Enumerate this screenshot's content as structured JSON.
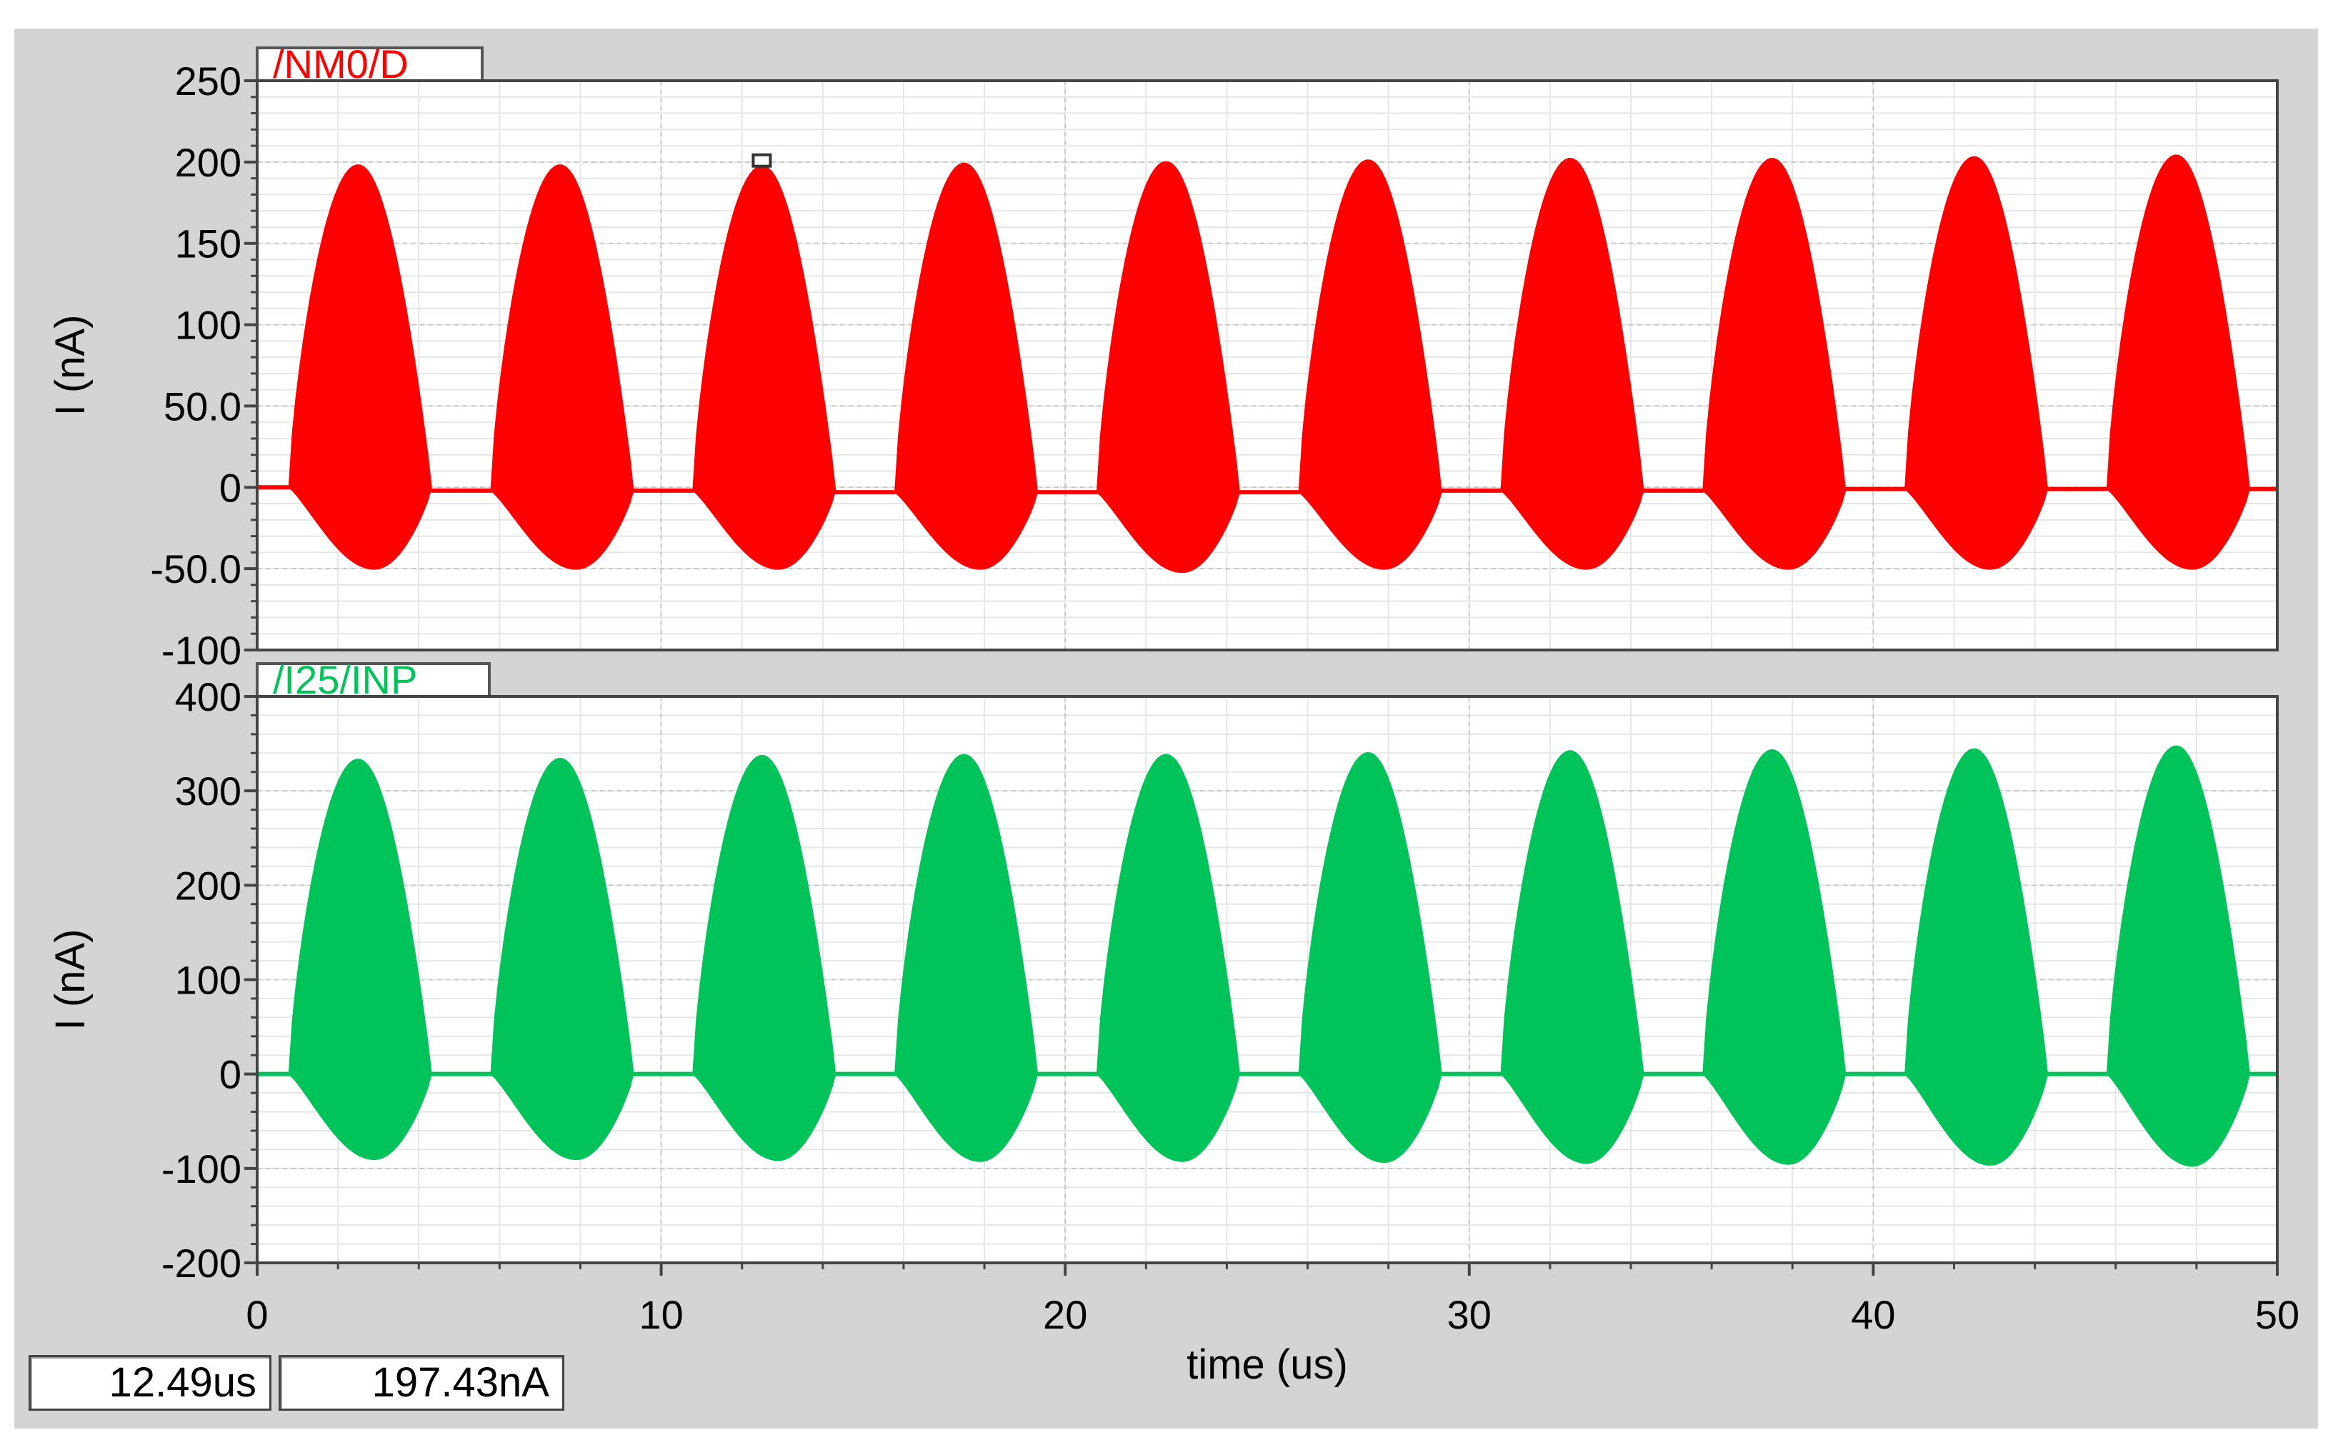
{
  "chart_data": [
    {
      "type": "line",
      "trace_name": "/NM0/D",
      "color": "#ff0000",
      "ylabel": "I (nA)",
      "xlabel": "time (us)",
      "xlim": [
        0,
        50
      ],
      "ylim": [
        -100,
        250
      ],
      "yticks": [
        250,
        200,
        150,
        100,
        50,
        0,
        -50,
        -100
      ],
      "ytick_labels": [
        "250",
        "200",
        "150",
        "100",
        "50.0",
        "0",
        "-50.0",
        "-100"
      ],
      "grid": true,
      "series": [
        {
          "name": "/NM0/D",
          "period_us": 5.0,
          "burst_start_us": [
            0.8,
            5.8,
            10.8,
            15.8,
            20.8,
            25.8,
            30.8,
            35.8,
            40.8,
            45.8
          ],
          "burst_end_us": [
            4.3,
            9.3,
            14.3,
            19.3,
            24.3,
            29.3,
            34.3,
            39.3,
            44.3,
            49.3
          ],
          "peak_time_us": [
            2.5,
            7.5,
            12.5,
            17.5,
            22.5,
            27.5,
            32.5,
            37.5,
            42.5,
            47.5
          ],
          "peak_max_nA": [
            198,
            198,
            197.4,
            199,
            200,
            201,
            202,
            202,
            203,
            204
          ],
          "peak_min_nA": [
            -50,
            -50,
            -50,
            -50,
            -52,
            -50,
            -50,
            -50,
            -50,
            -50
          ],
          "baseline_nA": [
            0,
            -2,
            -2,
            -3,
            -3,
            -3,
            -2,
            -2,
            -1,
            -1
          ]
        }
      ]
    },
    {
      "type": "line",
      "trace_name": "/I25/INP",
      "color": "#00c35a",
      "ylabel": "I (nA)",
      "xlabel": "time (us)",
      "xlim": [
        0,
        50
      ],
      "ylim": [
        -200,
        400
      ],
      "yticks": [
        400,
        300,
        200,
        100,
        0,
        -100,
        -200
      ],
      "ytick_labels": [
        "400",
        "300",
        "200",
        "100",
        "0",
        "-100",
        "-200"
      ],
      "grid": true,
      "series": [
        {
          "name": "/I25/INP",
          "period_us": 5.0,
          "burst_start_us": [
            0.8,
            5.8,
            10.8,
            15.8,
            20.8,
            25.8,
            30.8,
            35.8,
            40.8,
            45.8
          ],
          "burst_end_us": [
            4.3,
            9.3,
            14.3,
            19.3,
            24.3,
            29.3,
            34.3,
            39.3,
            44.3,
            49.3
          ],
          "peak_time_us": [
            2.5,
            7.5,
            12.5,
            17.5,
            22.5,
            27.5,
            32.5,
            37.5,
            42.5,
            47.5
          ],
          "peak_max_nA": [
            333,
            334,
            337,
            338,
            338,
            340,
            342,
            343,
            344,
            347
          ],
          "peak_min_nA": [
            -90,
            -90,
            -91,
            -92,
            -92,
            -93,
            -94,
            -95,
            -96,
            -97
          ],
          "baseline_nA": [
            0,
            0,
            0,
            0,
            0,
            0,
            0,
            0,
            0,
            0
          ]
        }
      ]
    }
  ],
  "x_axis": {
    "ticks": [
      0,
      10,
      20,
      30,
      40,
      50
    ],
    "tick_labels": [
      "0",
      "10",
      "20",
      "30",
      "40",
      "50"
    ],
    "label": "time (us)"
  },
  "marker": {
    "time_us": 12.49,
    "value_nA": 197.43
  },
  "readout": {
    "time": "12.49us",
    "value": "197.43nA"
  },
  "colors": {
    "frame_bg": "#d4d4d4",
    "plot_bg": "#ffffff",
    "grid": "#c8c8c8",
    "minor_grid": "#e6e6e6"
  }
}
